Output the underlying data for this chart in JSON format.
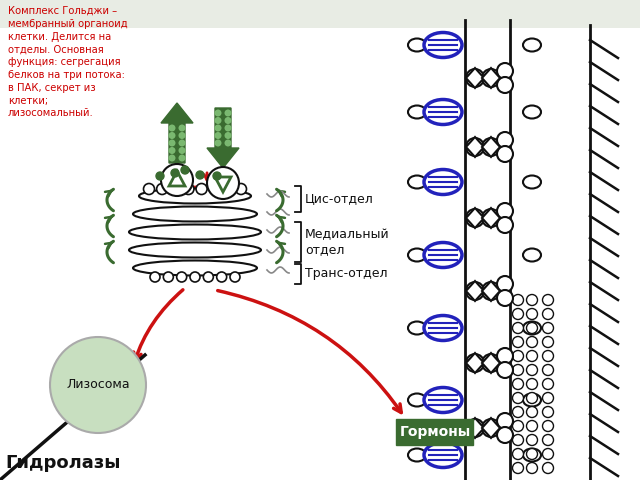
{
  "bg_color": "#ffffff",
  "title_text": "Комплекс Гольджи –\nмембранный органоид\nклетки. Делится на\nотделы. Основная\nфункция: сегрегация\nбелков на три потока:\nв ПАК, секрет из\nклетки;\nлизосомальный.",
  "title_color": "#cc0000",
  "label_cis": "Цис-отдел",
  "label_med": "Медиальный\nотдел",
  "label_trans": "Транс-отдел",
  "label_lyso": "Лизосома",
  "label_hydro": "Гидролазы",
  "label_hormones": "Гормоны",
  "dark_green": "#3a6b30",
  "light_green": "#c8dfc0",
  "red_arrow": "#cc1111",
  "blue_oval": "#2222bb",
  "black": "#111111",
  "gray_bg_top": "#e8ece4"
}
